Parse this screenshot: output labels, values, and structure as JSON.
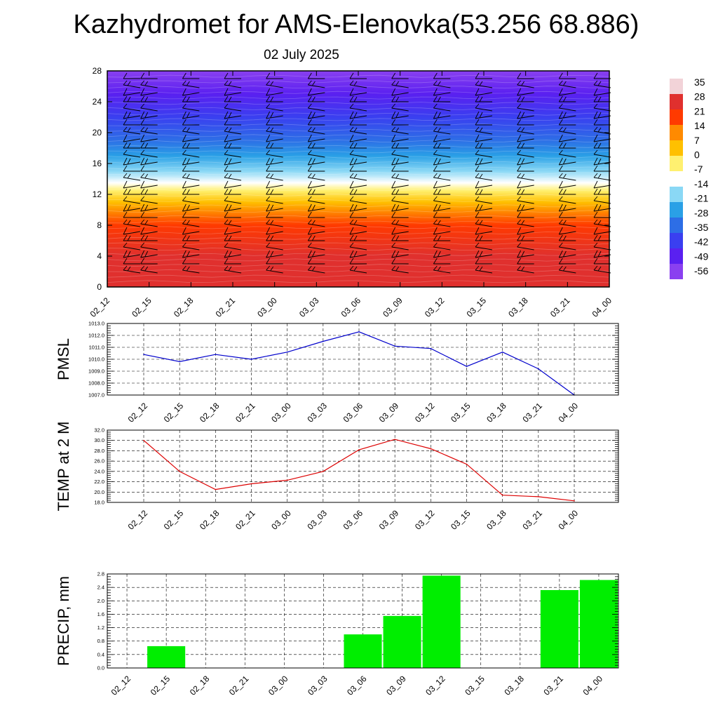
{
  "title": "Kazhydromet for AMS-Elenovka(53.256 68.886)",
  "subtitle": "02 July 2025",
  "colorbar": {
    "labels": [
      "35",
      "28",
      "21",
      "14",
      "7",
      "0",
      "-7",
      "-14",
      "-21",
      "-28",
      "-35",
      "-42",
      "-49",
      "-56"
    ],
    "colors": [
      "#f2d3d8",
      "#e0302e",
      "#ff3a00",
      "#ff8a00",
      "#ffc000",
      "#fff070",
      "#ffffff",
      "#8ad8f5",
      "#2aa0e6",
      "#2d6ee6",
      "#3a3ff0",
      "#5a20f0",
      "#8a40f0"
    ]
  },
  "chart_data": [
    {
      "type": "heatmap",
      "name": "vertical-section",
      "x": [
        "02_12",
        "02_15",
        "02_18",
        "02_21",
        "03_00",
        "03_03",
        "03_06",
        "03_09",
        "03_12",
        "03_15",
        "03_18",
        "03_21",
        "04_00"
      ],
      "yticks": [
        "0",
        "4",
        "8",
        "12",
        "16",
        "20",
        "24",
        "28"
      ],
      "ylim": [
        0,
        28
      ],
      "zrange": [
        -56,
        35
      ],
      "profile": [
        {
          "y": 0,
          "value": 31
        },
        {
          "y": 4,
          "value": 28
        },
        {
          "y": 8,
          "value": 21
        },
        {
          "y": 11,
          "value": 7
        },
        {
          "y": 12.5,
          "value": 0
        },
        {
          "y": 13.5,
          "value": -14
        },
        {
          "y": 15,
          "value": -21
        },
        {
          "y": 17,
          "value": -28
        },
        {
          "y": 19,
          "value": -35
        },
        {
          "y": 22,
          "value": -42
        },
        {
          "y": 25,
          "value": -49
        },
        {
          "y": 28,
          "value": -56
        }
      ],
      "overlay": "wind barbs"
    },
    {
      "type": "line",
      "name": "pmsl",
      "ylabel": "PMSL",
      "x": [
        "02_12",
        "02_15",
        "02_18",
        "02_21",
        "03_00",
        "03_03",
        "03_06",
        "03_09",
        "03_12",
        "03_15",
        "03_18",
        "03_21",
        "04_00"
      ],
      "values": [
        1010.4,
        1009.8,
        1010.4,
        1010.0,
        1010.6,
        1011.5,
        1012.3,
        1011.1,
        1010.9,
        1009.4,
        1010.6,
        1009.2,
        1007.0
      ],
      "yticks": [
        "1007.0",
        "1008.0",
        "1009.0",
        "1010.0",
        "1011.0",
        "1012.0",
        "1013.0"
      ],
      "ylim": [
        1007,
        1013
      ],
      "color": "#0000cc",
      "grid": true
    },
    {
      "type": "line",
      "name": "temp",
      "ylabel": "TEMP at 2 M",
      "x": [
        "02_12",
        "02_15",
        "02_18",
        "02_21",
        "03_00",
        "03_03",
        "03_06",
        "03_09",
        "03_12",
        "03_15",
        "03_18",
        "03_21",
        "04_00"
      ],
      "values": [
        30.0,
        24.0,
        20.5,
        21.6,
        22.3,
        24.0,
        28.2,
        30.2,
        28.4,
        25.4,
        19.4,
        19.1,
        18.3
      ],
      "yticks": [
        "18.0",
        "20.0",
        "22.0",
        "24.0",
        "26.0",
        "28.0",
        "30.0",
        "32.0"
      ],
      "ylim": [
        18,
        32
      ],
      "color": "#dd0000",
      "grid": true
    },
    {
      "type": "bar",
      "name": "precip",
      "ylabel": "PRECIP, mm",
      "x": [
        "02_12",
        "02_15",
        "02_18",
        "02_21",
        "03_00",
        "03_03",
        "03_06",
        "03_09",
        "03_12",
        "03_15",
        "03_18",
        "03_21",
        "04_00"
      ],
      "values": [
        0,
        0.65,
        0,
        0,
        0,
        0,
        1.0,
        1.55,
        2.75,
        0,
        0,
        2.32,
        2.62
      ],
      "yticks": [
        "0.0",
        "0.4",
        "0.8",
        "1.2",
        "1.6",
        "2.0",
        "2.4",
        "2.8"
      ],
      "ylim": [
        0,
        2.8
      ],
      "color": "#00ee00",
      "grid": true
    }
  ]
}
